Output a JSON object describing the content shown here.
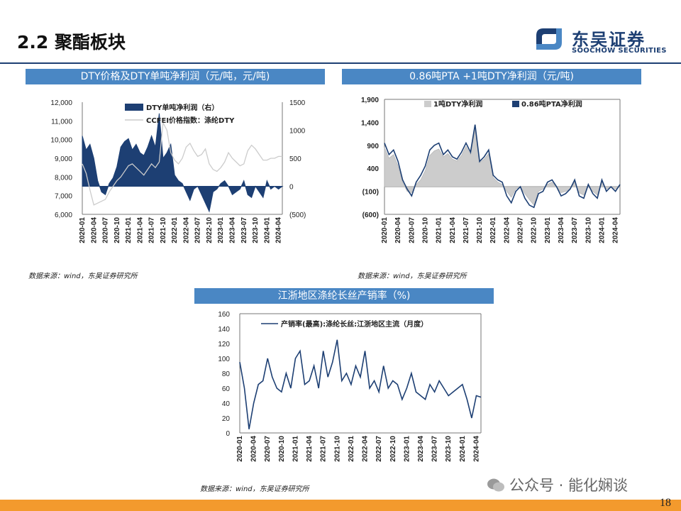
{
  "slide": {
    "title": "2.2 聚酯板块",
    "logo_cn": "东吴证券",
    "logo_en": "SOOCHOW SECURITIES",
    "page_number": "18",
    "watermark": "公众号 · 能化娴谈"
  },
  "colors": {
    "header_bg": "#4a87c4",
    "brand": "#1d3f73",
    "footer": "#f39a2d",
    "navy": "#1d3f73",
    "light": "#cccccc",
    "negative_label": "#c00000"
  },
  "x_ticks": [
    "2020-01",
    "2020-04",
    "2020-07",
    "2020-10",
    "2021-01",
    "2021-04",
    "2021-07",
    "2021-10",
    "2022-01",
    "2022-04",
    "2022-07",
    "2022-10",
    "2023-01",
    "2023-04",
    "2023-07",
    "2023-10",
    "2024-01",
    "2024-04"
  ],
  "chart_data": [
    {
      "type": "area",
      "header": "DTY价格及DTY单吨净利润（元/吨，元/吨)",
      "source": "数据来源：wind，东吴证券研究所",
      "y_ticks": [
        "12,000",
        "11,000",
        "10,000",
        "9,000",
        "8,000",
        "7,000",
        "6,000"
      ],
      "y2_ticks": [
        "1500",
        "1000",
        "500",
        "0",
        "(500)"
      ],
      "ylim": [
        6000,
        12000
      ],
      "y2lim": [
        -500,
        1500
      ],
      "series": [
        {
          "name": "DTY单吨净利润（右）",
          "type": "area",
          "axis": "right",
          "x": [
            "2020-01",
            "2020-02",
            "2020-03",
            "2020-04",
            "2020-05",
            "2020-06",
            "2020-07",
            "2020-08",
            "2020-09",
            "2020-10",
            "2020-11",
            "2020-12",
            "2021-01",
            "2021-02",
            "2021-03",
            "2021-04",
            "2021-05",
            "2021-06",
            "2021-07",
            "2021-08",
            "2021-09",
            "2021-10",
            "2021-11",
            "2021-12",
            "2022-01",
            "2022-02",
            "2022-03",
            "2022-04",
            "2022-05",
            "2022-06",
            "2022-07",
            "2022-08",
            "2022-09",
            "2022-10",
            "2022-11",
            "2022-12",
            "2023-01",
            "2023-02",
            "2023-03",
            "2023-04",
            "2023-05",
            "2023-06",
            "2023-07",
            "2023-08",
            "2023-09",
            "2023-10",
            "2023-11",
            "2023-12",
            "2024-01",
            "2024-02",
            "2024-03",
            "2024-04",
            "2024-05"
          ],
          "values": [
            900,
            650,
            750,
            500,
            100,
            -100,
            -150,
            50,
            150,
            350,
            700,
            800,
            850,
            650,
            750,
            600,
            550,
            700,
            900,
            700,
            1300,
            500,
            600,
            750,
            200,
            100,
            50,
            -100,
            -250,
            -50,
            0,
            -150,
            -300,
            -450,
            -100,
            -50,
            50,
            100,
            0,
            -150,
            -100,
            -50,
            100,
            -150,
            -200,
            0,
            -100,
            -200,
            100,
            -50,
            0,
            -50,
            0
          ]
        },
        {
          "name": "CCFEI价格指数：涤纶DTY",
          "type": "line",
          "axis": "left",
          "x": [
            "2020-01",
            "2020-02",
            "2020-03",
            "2020-04",
            "2020-05",
            "2020-06",
            "2020-07",
            "2020-08",
            "2020-09",
            "2020-10",
            "2020-11",
            "2020-12",
            "2021-01",
            "2021-02",
            "2021-03",
            "2021-04",
            "2021-05",
            "2021-06",
            "2021-07",
            "2021-08",
            "2021-09",
            "2021-10",
            "2021-11",
            "2021-12",
            "2022-01",
            "2022-02",
            "2022-03",
            "2022-04",
            "2022-05",
            "2022-06",
            "2022-07",
            "2022-08",
            "2022-09",
            "2022-10",
            "2022-11",
            "2022-12",
            "2023-01",
            "2023-02",
            "2023-03",
            "2023-04",
            "2023-05",
            "2023-06",
            "2023-07",
            "2023-08",
            "2023-09",
            "2023-10",
            "2023-11",
            "2023-12",
            "2024-01",
            "2024-02",
            "2024-03",
            "2024-04",
            "2024-05"
          ],
          "values": [
            8700,
            8200,
            7300,
            6500,
            6600,
            6700,
            6800,
            7200,
            7500,
            7800,
            8000,
            8300,
            8600,
            8700,
            8500,
            8300,
            8100,
            8400,
            8700,
            8500,
            8800,
            10900,
            10500,
            9300,
            8900,
            8700,
            9000,
            9600,
            9800,
            9400,
            9100,
            9200,
            9500,
            8700,
            8400,
            8300,
            8500,
            8800,
            9300,
            9000,
            8800,
            8600,
            8700,
            9400,
            9700,
            9500,
            9200,
            8900,
            8900,
            9000,
            9000,
            9100,
            9100
          ]
        }
      ]
    },
    {
      "type": "area",
      "header": "0.86吨PTA +1吨DTY净利润（元/吨)",
      "source": "数据来源：wind，东吴证券研究所",
      "y_ticks": [
        "1,900",
        "1,400",
        "900",
        "400",
        "(100)",
        "(600)"
      ],
      "ylim": [
        -600,
        1900
      ],
      "series": [
        {
          "name": "1吨DTY净利润",
          "type": "area",
          "x": [
            "2020-01",
            "2020-02",
            "2020-03",
            "2020-04",
            "2020-05",
            "2020-06",
            "2020-07",
            "2020-08",
            "2020-09",
            "2020-10",
            "2020-11",
            "2020-12",
            "2021-01",
            "2021-02",
            "2021-03",
            "2021-04",
            "2021-05",
            "2021-06",
            "2021-07",
            "2021-08",
            "2021-09",
            "2021-10",
            "2021-11",
            "2021-12",
            "2022-01",
            "2022-02",
            "2022-03",
            "2022-04",
            "2022-05",
            "2022-06",
            "2022-07",
            "2022-08",
            "2022-09",
            "2022-10",
            "2022-11",
            "2022-12",
            "2023-01",
            "2023-02",
            "2023-03",
            "2023-04",
            "2023-05",
            "2023-06",
            "2023-07",
            "2023-08",
            "2023-09",
            "2023-10",
            "2023-11",
            "2023-12",
            "2024-01",
            "2024-02",
            "2024-03",
            "2024-04",
            "2024-05"
          ],
          "values": [
            850,
            620,
            700,
            450,
            100,
            -100,
            -130,
            50,
            150,
            350,
            680,
            780,
            820,
            650,
            720,
            600,
            560,
            680,
            880,
            700,
            1250,
            520,
            600,
            720,
            200,
            100,
            50,
            -100,
            -230,
            -50,
            0,
            -150,
            -280,
            -400,
            -100,
            -50,
            50,
            100,
            0,
            -130,
            -100,
            -50,
            100,
            -130,
            -180,
            0,
            -100,
            -180,
            100,
            -50,
            0,
            -50,
            0
          ]
        },
        {
          "name": "0.86吨PTA净利润",
          "type": "line",
          "x": [
            "2020-01",
            "2020-02",
            "2020-03",
            "2020-04",
            "2020-05",
            "2020-06",
            "2020-07",
            "2020-08",
            "2020-09",
            "2020-10",
            "2020-11",
            "2020-12",
            "2021-01",
            "2021-02",
            "2021-03",
            "2021-04",
            "2021-05",
            "2021-06",
            "2021-07",
            "2021-08",
            "2021-09",
            "2021-10",
            "2021-11",
            "2021-12",
            "2022-01",
            "2022-02",
            "2022-03",
            "2022-04",
            "2022-05",
            "2022-06",
            "2022-07",
            "2022-08",
            "2022-09",
            "2022-10",
            "2022-11",
            "2022-12",
            "2023-01",
            "2023-02",
            "2023-03",
            "2023-04",
            "2023-05",
            "2023-06",
            "2023-07",
            "2023-08",
            "2023-09",
            "2023-10",
            "2023-11",
            "2023-12",
            "2024-01",
            "2024-02",
            "2024-03",
            "2024-04",
            "2024-05"
          ],
          "values": [
            950,
            700,
            800,
            550,
            150,
            -50,
            -200,
            100,
            250,
            450,
            800,
            900,
            950,
            700,
            800,
            650,
            600,
            750,
            950,
            750,
            1350,
            550,
            650,
            800,
            250,
            150,
            100,
            -200,
            -350,
            -100,
            0,
            -250,
            -400,
            -450,
            -150,
            -100,
            100,
            150,
            0,
            -200,
            -150,
            -50,
            150,
            -200,
            -250,
            50,
            -150,
            -250,
            150,
            -100,
            0,
            -100,
            50
          ]
        }
      ]
    },
    {
      "type": "line",
      "header": "江浙地区涤纶长丝产销率（%)",
      "source": "数据来源：wind，东吴证券研究所",
      "y_ticks": [
        "160",
        "140",
        "120",
        "100",
        "80",
        "60",
        "40",
        "20",
        "0"
      ],
      "ylim": [
        0,
        160
      ],
      "series": [
        {
          "name": "产销率(最高):涤纶长丝:江浙地区主流（月度）",
          "x": [
            "2020-01",
            "2020-02",
            "2020-03",
            "2020-04",
            "2020-05",
            "2020-06",
            "2020-07",
            "2020-08",
            "2020-09",
            "2020-10",
            "2020-11",
            "2020-12",
            "2021-01",
            "2021-02",
            "2021-03",
            "2021-04",
            "2021-05",
            "2021-06",
            "2021-07",
            "2021-08",
            "2021-09",
            "2021-10",
            "2021-11",
            "2021-12",
            "2022-01",
            "2022-02",
            "2022-03",
            "2022-04",
            "2022-05",
            "2022-06",
            "2022-07",
            "2022-08",
            "2022-09",
            "2022-10",
            "2022-11",
            "2022-12",
            "2023-01",
            "2023-02",
            "2023-03",
            "2023-04",
            "2023-05",
            "2023-06",
            "2023-07",
            "2023-08",
            "2023-09",
            "2023-10",
            "2023-11",
            "2023-12",
            "2024-01",
            "2024-02",
            "2024-03",
            "2024-04",
            "2024-05"
          ],
          "values": [
            95,
            60,
            5,
            40,
            65,
            70,
            100,
            75,
            60,
            55,
            80,
            60,
            100,
            110,
            65,
            70,
            90,
            60,
            110,
            75,
            95,
            125,
            70,
            80,
            65,
            90,
            75,
            110,
            60,
            70,
            55,
            90,
            60,
            70,
            65,
            45,
            60,
            80,
            55,
            50,
            45,
            65,
            55,
            70,
            60,
            50,
            55,
            60,
            65,
            45,
            20,
            50,
            48
          ]
        }
      ]
    }
  ]
}
